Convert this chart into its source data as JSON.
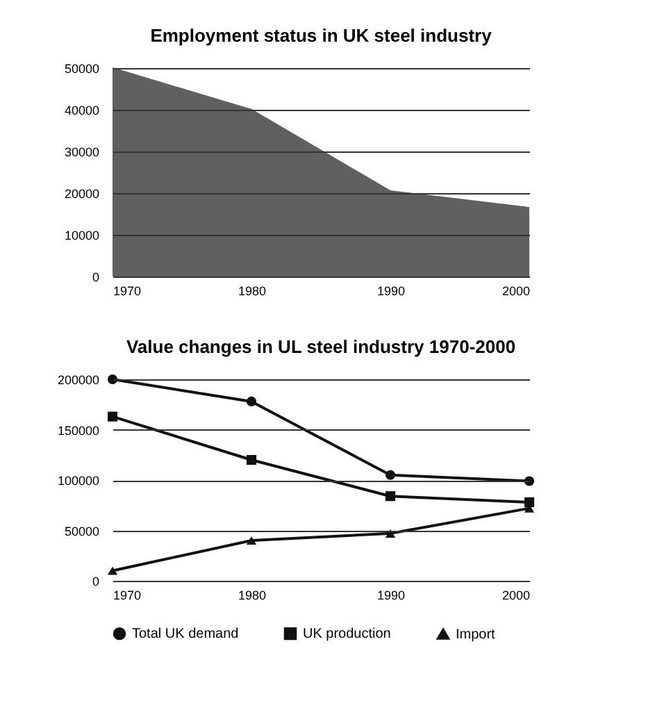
{
  "chart_data": [
    {
      "type": "area",
      "title": "Employment status in UK steel industry",
      "x": [
        1970,
        1980,
        1990,
        2000
      ],
      "xlim": [
        1970,
        2000
      ],
      "xticks": [
        1970,
        1980,
        1990,
        2000
      ],
      "ylim": [
        0,
        50000
      ],
      "yticks": [
        0,
        10000,
        20000,
        30000,
        40000,
        50000
      ],
      "grid": "y",
      "series": [
        {
          "color": "#606060",
          "values": [
            50000,
            40000,
            20500,
            16500
          ]
        }
      ]
    },
    {
      "type": "line",
      "title": "Value changes in UL steel industry 1970-2000",
      "x": [
        1970,
        1980,
        1990,
        2000
      ],
      "xlim": [
        1970,
        2000
      ],
      "xticks": [
        1970,
        1980,
        1990,
        2000
      ],
      "ylim": [
        0,
        200000
      ],
      "yticks": [
        0,
        50000,
        100000,
        150000,
        200000
      ],
      "grid": "y",
      "legend": "bottom",
      "series": [
        {
          "name": "Total UK demand",
          "color": "#111111",
          "marker": "circle",
          "values": [
            200000,
            178000,
            105000,
            99000
          ]
        },
        {
          "name": "UK production",
          "color": "#111111",
          "marker": "square",
          "values": [
            163000,
            120000,
            84000,
            78000
          ]
        },
        {
          "name": "Import",
          "color": "#111111",
          "marker": "triangle",
          "values": [
            10000,
            40000,
            47000,
            72000
          ]
        }
      ]
    }
  ]
}
